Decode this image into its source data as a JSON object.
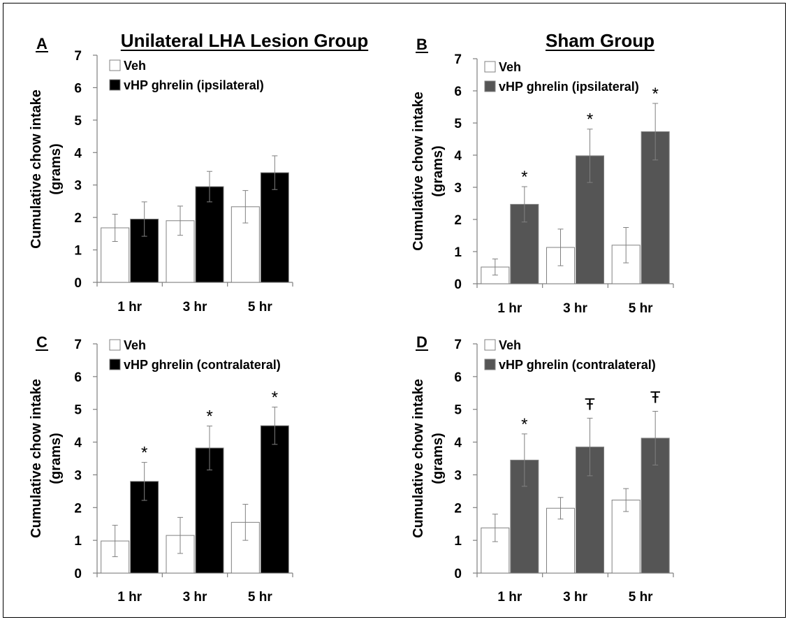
{
  "chart_data": [
    {
      "panel": "A",
      "type": "bar",
      "title": "Unilateral LHA Lesion Group",
      "ylabel_line1": "Cumulative chow intake",
      "ylabel_line2": "(grams)",
      "xlabel": "",
      "ylim": [
        0,
        7
      ],
      "yticks": [
        "0",
        "1",
        "2",
        "3",
        "4",
        "5",
        "6",
        "7"
      ],
      "categories": [
        "1 hr",
        "3 hr",
        "5 hr"
      ],
      "series": [
        {
          "name": "Veh",
          "values": [
            1.68,
            1.9,
            2.33
          ],
          "errors": [
            0.42,
            0.45,
            0.5
          ],
          "fill": "#ffffff",
          "sig": [
            "",
            "",
            ""
          ]
        },
        {
          "name": "vHP ghrelin (ipsilateral)",
          "values": [
            1.95,
            2.95,
            3.38
          ],
          "errors": [
            0.53,
            0.47,
            0.52
          ],
          "fill": "#000000",
          "sig": [
            "",
            "",
            ""
          ]
        }
      ]
    },
    {
      "panel": "B",
      "type": "bar",
      "title": "Sham Group",
      "ylabel_line1": "Cumulative chow intake",
      "ylabel_line2": "(grams)",
      "xlabel": "",
      "ylim": [
        0,
        7
      ],
      "yticks": [
        "0",
        "1",
        "2",
        "3",
        "4",
        "5",
        "6",
        "7"
      ],
      "categories": [
        "1 hr",
        "3 hr",
        "5 hr"
      ],
      "series": [
        {
          "name": "Veh",
          "values": [
            0.52,
            1.13,
            1.2
          ],
          "errors": [
            0.25,
            0.57,
            0.55
          ],
          "fill": "#ffffff",
          "sig": [
            "",
            "",
            ""
          ]
        },
        {
          "name": "vHP ghrelin (ipsilateral)",
          "values": [
            2.47,
            3.98,
            4.73
          ],
          "errors": [
            0.55,
            0.83,
            0.88
          ],
          "fill": "#555555",
          "sig": [
            "*",
            "*",
            "*"
          ]
        }
      ]
    },
    {
      "panel": "C",
      "type": "bar",
      "title": "",
      "ylabel_line1": "Cumulative chow intake",
      "ylabel_line2": "(grams)",
      "xlabel": "",
      "ylim": [
        0,
        7
      ],
      "yticks": [
        "0",
        "1",
        "2",
        "3",
        "4",
        "5",
        "6",
        "7"
      ],
      "categories": [
        "1 hr",
        "3 hr",
        "5 hr"
      ],
      "series": [
        {
          "name": "Veh",
          "values": [
            0.98,
            1.15,
            1.55
          ],
          "errors": [
            0.48,
            0.55,
            0.55
          ],
          "fill": "#ffffff",
          "sig": [
            "",
            "",
            ""
          ]
        },
        {
          "name": "vHP ghrelin (contralateral)",
          "values": [
            2.8,
            3.82,
            4.5
          ],
          "errors": [
            0.58,
            0.67,
            0.57
          ],
          "fill": "#000000",
          "sig": [
            "*",
            "*",
            "*"
          ]
        }
      ]
    },
    {
      "panel": "D",
      "type": "bar",
      "title": "",
      "ylabel_line1": "Cumulative chow intake",
      "ylabel_line2": "(grams)",
      "xlabel": "",
      "ylim": [
        0,
        7
      ],
      "yticks": [
        "0",
        "1",
        "2",
        "3",
        "4",
        "5",
        "6",
        "7"
      ],
      "categories": [
        "1 hr",
        "3 hr",
        "5 hr"
      ],
      "series": [
        {
          "name": "Veh",
          "values": [
            1.38,
            1.98,
            2.23
          ],
          "errors": [
            0.42,
            0.33,
            0.35
          ],
          "fill": "#ffffff",
          "sig": [
            "",
            "",
            ""
          ]
        },
        {
          "name": "vHP ghrelin (contralateral)",
          "values": [
            3.45,
            3.85,
            4.12
          ],
          "errors": [
            0.8,
            0.88,
            0.82
          ],
          "fill": "#555555",
          "sig": [
            "*",
            "Ŧ",
            "Ŧ"
          ]
        }
      ]
    }
  ]
}
